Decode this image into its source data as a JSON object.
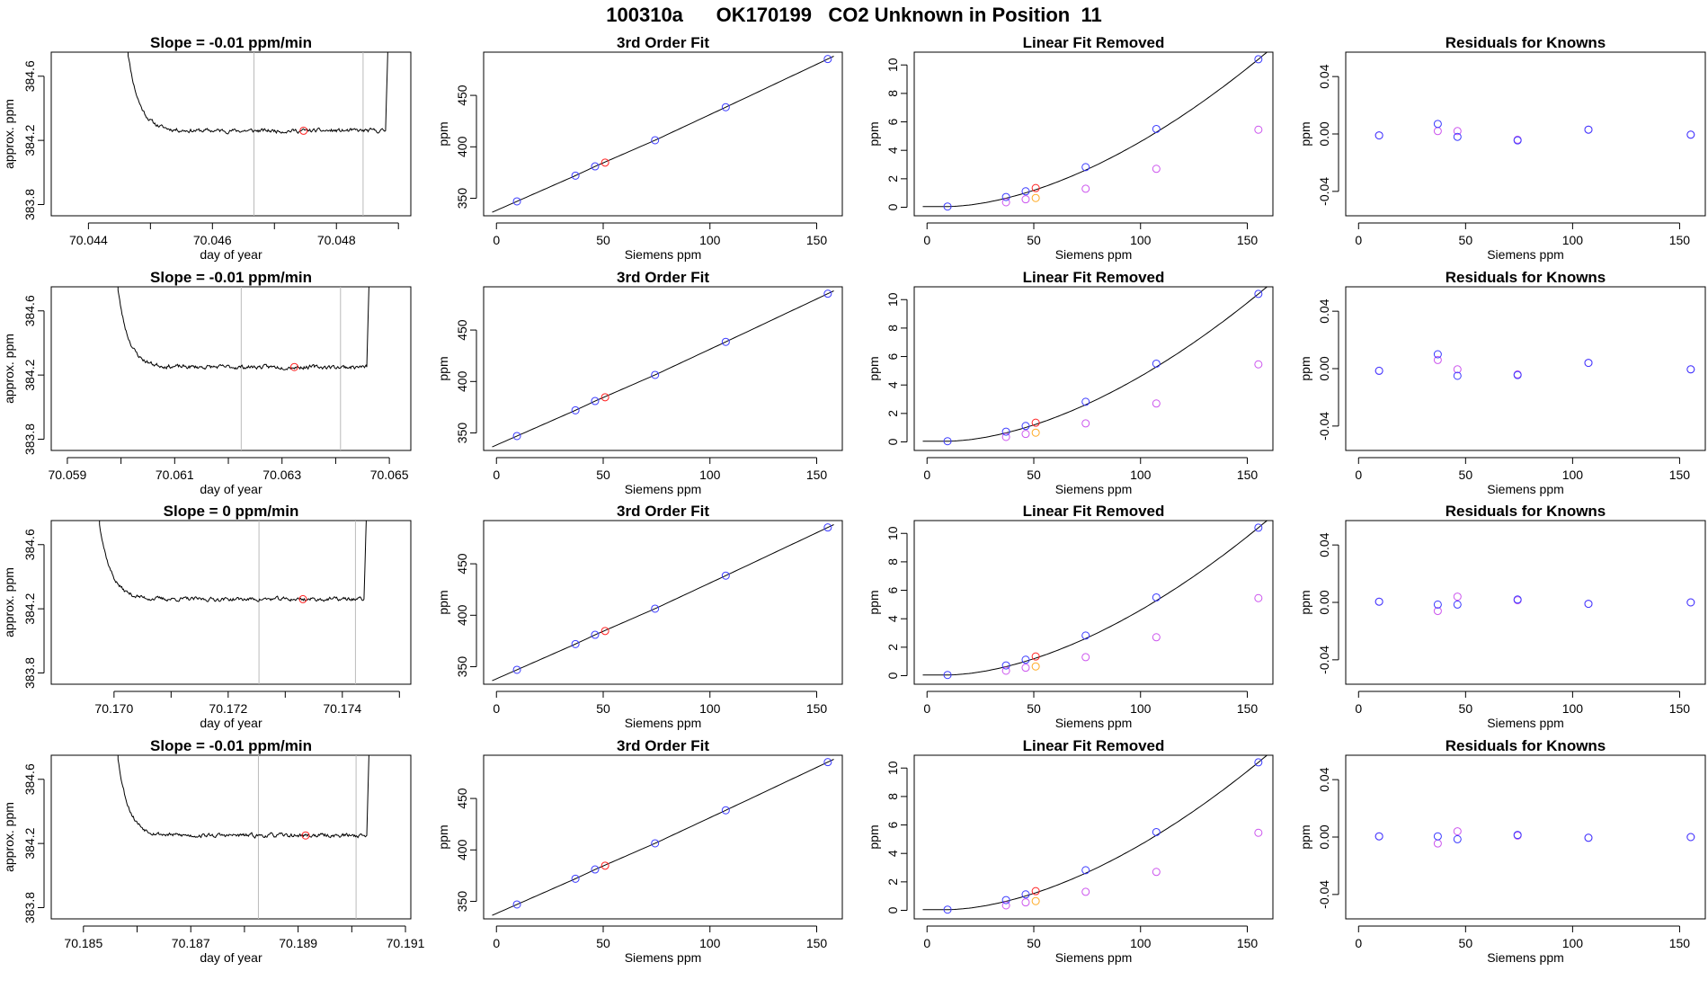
{
  "page": {
    "title": "100310a      OK170199   CO2 Unknown in Position  11"
  },
  "colors": {
    "blue": "#3a3aff",
    "red": "#ff2020",
    "violet": "#cc55ee",
    "orange": "#ffaa22",
    "purple": "#8833ee",
    "line": "#000000",
    "vline": "#bbbbbb"
  },
  "chart_data": [
    {
      "type": "line",
      "title": "Slope =  -0.01  ppm/min",
      "xlabel": "day of year",
      "ylabel": "approx. ppm",
      "xlim": [
        70.0434,
        70.0492
      ],
      "ylim": [
        383.73,
        384.75
      ],
      "xticks": [
        70.044,
        70.045,
        70.046,
        70.047,
        70.048,
        70.049
      ],
      "xticklabels": [
        "70.044",
        "",
        "70.046",
        "",
        "70.048",
        ""
      ],
      "yticks": [
        383.8,
        384.2,
        384.6
      ],
      "yticklabels": [
        "383.8",
        "384.2",
        "384.6"
      ],
      "vlines": [
        70.04667,
        70.04843
      ],
      "trace": {
        "start": 70.0446,
        "end": 70.0489,
        "level": 384.26,
        "rise": 0.6,
        "tau": 0.00018,
        "seed": 11
      },
      "highlight": {
        "x": 70.04747,
        "y": 384.26
      }
    },
    {
      "type": "scatter",
      "title": "3rd Order Fit",
      "xlabel": "Siemens ppm",
      "ylabel": "ppm",
      "xlim": [
        -6,
        162
      ],
      "ylim": [
        333,
        492
      ],
      "xticks": [
        0,
        50,
        100,
        150
      ],
      "yticks": [
        350,
        400,
        450
      ],
      "fit": "curve3",
      "knowns": {
        "x": [
          9.6,
          37.0,
          46.2,
          74.3,
          107.4,
          155.2
        ],
        "y": [
          347.0,
          372.0,
          381.0,
          406.4,
          438.5,
          485.3
        ]
      },
      "unknown": {
        "x": [
          50.9
        ],
        "y": [
          384.7
        ]
      }
    },
    {
      "type": "scatter",
      "title": "Linear Fit Removed",
      "xlabel": "Siemens ppm",
      "ylabel": "ppm",
      "xlim": [
        -6,
        162
      ],
      "ylim": [
        -0.6,
        10.9
      ],
      "xticks": [
        0,
        50,
        100,
        150
      ],
      "yticks": [
        0,
        2,
        4,
        6,
        8,
        10
      ],
      "fit": "resid",
      "knowns": {
        "x": [
          9.6,
          37.0,
          46.2,
          74.3,
          107.4,
          155.2
        ],
        "y": [
          0.05,
          0.72,
          1.12,
          2.82,
          5.5,
          10.4
        ]
      },
      "secondary": {
        "x": [
          37.0,
          46.2,
          74.3,
          107.4,
          155.2
        ],
        "y": [
          0.35,
          0.56,
          1.3,
          2.7,
          5.45
        ]
      },
      "unknown": {
        "x": [
          50.9
        ],
        "y": [
          1.35
        ]
      },
      "unknown2": {
        "x": [
          50.9
        ],
        "y": [
          0.65
        ]
      }
    },
    {
      "type": "scatter",
      "title": "Residuals for Knowns",
      "xlabel": "Siemens ppm",
      "ylabel": "ppm",
      "xlim": [
        -6,
        162
      ],
      "ylim": [
        -0.057,
        0.057
      ],
      "xticks": [
        0,
        50,
        100,
        150
      ],
      "yticks": [
        -0.04,
        0,
        0.04
      ],
      "yticklabels": [
        "-0.04",
        "0.00",
        "0.04"
      ],
      "series": [
        {
          "name": "",
          "x": [
            9.6,
            37.0,
            46.2,
            74.3,
            107.4,
            155.2
          ],
          "y": [
            -0.001,
            0.007,
            -0.002,
            -0.0045,
            0.003,
            -0.0005
          ]
        },
        {
          "name": "",
          "x": [
            9.6,
            37.0,
            46.2,
            74.3,
            107.4,
            155.2
          ],
          "y": [
            -0.001,
            0.002,
            0.002,
            -0.004,
            0.003,
            -0.0005
          ]
        }
      ]
    },
    {
      "type": "line",
      "title": "Slope =  -0.01  ppm/min",
      "xlabel": "day of year",
      "ylabel": "approx. ppm",
      "xlim": [
        70.0587,
        70.0654
      ],
      "ylim": [
        383.73,
        384.75
      ],
      "xticks": [
        70.059,
        70.06,
        70.061,
        70.062,
        70.063,
        70.064,
        70.065
      ],
      "xticklabels": [
        "70.059",
        "",
        "70.061",
        "",
        "70.063",
        "",
        "70.065"
      ],
      "yticks": [
        383.8,
        384.2,
        384.6
      ],
      "yticklabels": [
        "383.8",
        "384.2",
        "384.6"
      ],
      "vlines": [
        70.06224,
        70.06409
      ],
      "trace": {
        "start": 70.0599,
        "end": 70.0647,
        "level": 384.25,
        "rise": 0.6,
        "tau": 0.0002,
        "seed": 23
      },
      "highlight": {
        "x": 70.06323,
        "y": 384.25
      }
    },
    {
      "type": "scatter",
      "title": "3rd Order Fit",
      "xlabel": "Siemens ppm",
      "ylabel": "ppm",
      "xlim": [
        -6,
        162
      ],
      "ylim": [
        333,
        492
      ],
      "xticks": [
        0,
        50,
        100,
        150
      ],
      "yticks": [
        350,
        400,
        450
      ],
      "fit": "curve3",
      "knowns": {
        "x": [
          9.6,
          37.0,
          46.2,
          74.3,
          107.4,
          155.2
        ],
        "y": [
          347.0,
          372.0,
          381.0,
          406.4,
          438.5,
          485.3
        ]
      },
      "unknown": {
        "x": [
          50.9
        ],
        "y": [
          384.7
        ]
      }
    },
    {
      "type": "scatter",
      "title": "Linear Fit Removed",
      "xlabel": "Siemens ppm",
      "ylabel": "ppm",
      "xlim": [
        -6,
        162
      ],
      "ylim": [
        -0.6,
        10.9
      ],
      "xticks": [
        0,
        50,
        100,
        150
      ],
      "yticks": [
        0,
        2,
        4,
        6,
        8,
        10
      ],
      "fit": "resid",
      "knowns": {
        "x": [
          9.6,
          37.0,
          46.2,
          74.3,
          107.4,
          155.2
        ],
        "y": [
          0.05,
          0.72,
          1.12,
          2.82,
          5.5,
          10.4
        ]
      },
      "secondary": {
        "x": [
          37.0,
          46.2,
          74.3,
          107.4,
          155.2
        ],
        "y": [
          0.35,
          0.56,
          1.3,
          2.7,
          5.45
        ]
      },
      "unknown": {
        "x": [
          50.9
        ],
        "y": [
          1.35
        ]
      },
      "unknown2": {
        "x": [
          50.9
        ],
        "y": [
          0.65
        ]
      }
    },
    {
      "type": "scatter",
      "title": "Residuals for Knowns",
      "xlabel": "Siemens ppm",
      "ylabel": "ppm",
      "xlim": [
        -6,
        162
      ],
      "ylim": [
        -0.057,
        0.057
      ],
      "xticks": [
        0,
        50,
        100,
        150
      ],
      "yticks": [
        -0.04,
        0,
        0.04
      ],
      "yticklabels": [
        "-0.04",
        "0.00",
        "0.04"
      ],
      "series": [
        {
          "name": "",
          "x": [
            9.6,
            37.0,
            46.2,
            74.3,
            107.4,
            155.2
          ],
          "y": [
            -0.0015,
            0.01,
            -0.005,
            -0.0045,
            0.004,
            -0.0005
          ]
        },
        {
          "name": "",
          "x": [
            9.6,
            37.0,
            46.2,
            74.3,
            107.4,
            155.2
          ],
          "y": [
            -0.0015,
            0.006,
            -0.0005,
            -0.004,
            0.004,
            -0.0005
          ]
        }
      ]
    },
    {
      "type": "line",
      "title": "Slope =  0  ppm/min",
      "xlabel": "day of year",
      "ylabel": "approx. ppm",
      "xlim": [
        70.1689,
        70.1752
      ],
      "ylim": [
        383.73,
        384.75
      ],
      "xticks": [
        70.17,
        70.171,
        70.172,
        70.173,
        70.174,
        70.175
      ],
      "xticklabels": [
        "70.170",
        "",
        "70.172",
        "",
        "70.174",
        ""
      ],
      "yticks": [
        383.8,
        384.2,
        384.6
      ],
      "yticklabels": [
        "383.8",
        "384.2",
        "384.6"
      ],
      "vlines": [
        70.17254,
        70.17423
      ],
      "trace": {
        "start": 70.1697,
        "end": 70.1745,
        "level": 384.26,
        "rise": 0.6,
        "tau": 0.0002,
        "seed": 37
      },
      "highlight": {
        "x": 70.17331,
        "y": 384.26
      }
    },
    {
      "type": "scatter",
      "title": "3rd Order Fit",
      "xlabel": "Siemens ppm",
      "ylabel": "ppm",
      "xlim": [
        -6,
        162
      ],
      "ylim": [
        333,
        492
      ],
      "xticks": [
        0,
        50,
        100,
        150
      ],
      "yticks": [
        350,
        400,
        450
      ],
      "fit": "curve3",
      "knowns": {
        "x": [
          9.6,
          37.0,
          46.2,
          74.3,
          107.4,
          155.2
        ],
        "y": [
          347.0,
          372.0,
          381.0,
          406.4,
          438.5,
          485.3
        ]
      },
      "unknown": {
        "x": [
          50.9
        ],
        "y": [
          384.7
        ]
      }
    },
    {
      "type": "scatter",
      "title": "Linear Fit Removed",
      "xlabel": "Siemens ppm",
      "ylabel": "ppm",
      "xlim": [
        -6,
        162
      ],
      "ylim": [
        -0.6,
        10.9
      ],
      "xticks": [
        0,
        50,
        100,
        150
      ],
      "yticks": [
        0,
        2,
        4,
        6,
        8,
        10
      ],
      "fit": "resid",
      "knowns": {
        "x": [
          9.6,
          37.0,
          46.2,
          74.3,
          107.4,
          155.2
        ],
        "y": [
          0.05,
          0.72,
          1.12,
          2.82,
          5.5,
          10.4
        ]
      },
      "secondary": {
        "x": [
          37.0,
          46.2,
          74.3,
          107.4,
          155.2
        ],
        "y": [
          0.35,
          0.56,
          1.3,
          2.7,
          5.45
        ]
      },
      "unknown": {
        "x": [
          50.9
        ],
        "y": [
          1.35
        ]
      },
      "unknown2": {
        "x": [
          50.9
        ],
        "y": [
          0.65
        ]
      }
    },
    {
      "type": "scatter",
      "title": "Residuals for Knowns",
      "xlabel": "Siemens ppm",
      "ylabel": "ppm",
      "xlim": [
        -6,
        162
      ],
      "ylim": [
        -0.057,
        0.057
      ],
      "xticks": [
        0,
        50,
        100,
        150
      ],
      "yticks": [
        -0.04,
        0,
        0.04
      ],
      "yticklabels": [
        "-0.04",
        "0.00",
        "0.04"
      ],
      "series": [
        {
          "name": "",
          "x": [
            9.6,
            37.0,
            46.2,
            74.3,
            107.4,
            155.2
          ],
          "y": [
            0.0005,
            -0.0015,
            -0.0015,
            0.002,
            -0.001,
            0.0
          ]
        },
        {
          "name": "",
          "x": [
            9.6,
            37.0,
            46.2,
            74.3,
            107.4,
            155.2
          ],
          "y": [
            0.0005,
            -0.006,
            0.004,
            0.0015,
            -0.001,
            0.0
          ]
        }
      ]
    },
    {
      "type": "line",
      "title": "Slope =  -0.01  ppm/min",
      "xlabel": "day of year",
      "ylabel": "approx. ppm",
      "xlim": [
        70.1844,
        70.1911
      ],
      "ylim": [
        383.73,
        384.75
      ],
      "xticks": [
        70.185,
        70.186,
        70.187,
        70.188,
        70.189,
        70.19,
        70.191
      ],
      "xticklabels": [
        "70.185",
        "",
        "70.187",
        "",
        "70.189",
        "",
        "70.191"
      ],
      "yticks": [
        383.8,
        384.2,
        384.6
      ],
      "yticklabels": [
        "383.8",
        "384.2",
        "384.6"
      ],
      "vlines": [
        70.18826,
        70.19008
      ],
      "trace": {
        "start": 70.1856,
        "end": 70.1904,
        "level": 384.25,
        "rise": 0.6,
        "tau": 0.0002,
        "seed": 53
      },
      "highlight": {
        "x": 70.18914,
        "y": 384.25
      }
    },
    {
      "type": "scatter",
      "title": "3rd Order Fit",
      "xlabel": "Siemens ppm",
      "ylabel": "ppm",
      "xlim": [
        -6,
        162
      ],
      "ylim": [
        333,
        492
      ],
      "xticks": [
        0,
        50,
        100,
        150
      ],
      "yticks": [
        350,
        400,
        450
      ],
      "fit": "curve3",
      "knowns": {
        "x": [
          9.6,
          37.0,
          46.2,
          74.3,
          107.4,
          155.2
        ],
        "y": [
          347.0,
          372.0,
          381.0,
          406.4,
          438.5,
          485.3
        ]
      },
      "unknown": {
        "x": [
          50.9
        ],
        "y": [
          384.7
        ]
      }
    },
    {
      "type": "scatter",
      "title": "Linear Fit Removed",
      "xlabel": "Siemens ppm",
      "ylabel": "ppm",
      "xlim": [
        -6,
        162
      ],
      "ylim": [
        -0.6,
        10.9
      ],
      "xticks": [
        0,
        50,
        100,
        150
      ],
      "yticks": [
        0,
        2,
        4,
        6,
        8,
        10
      ],
      "fit": "resid",
      "knowns": {
        "x": [
          9.6,
          37.0,
          46.2,
          74.3,
          107.4,
          155.2
        ],
        "y": [
          0.05,
          0.72,
          1.12,
          2.82,
          5.5,
          10.4
        ]
      },
      "secondary": {
        "x": [
          37.0,
          46.2,
          74.3,
          107.4,
          155.2
        ],
        "y": [
          0.35,
          0.56,
          1.3,
          2.7,
          5.45
        ]
      },
      "unknown": {
        "x": [
          50.9
        ],
        "y": [
          1.35
        ]
      },
      "unknown2": {
        "x": [
          50.9
        ],
        "y": [
          0.65
        ]
      }
    },
    {
      "type": "scatter",
      "title": "Residuals for Knowns",
      "xlabel": "Siemens ppm",
      "ylabel": "ppm",
      "xlim": [
        -6,
        162
      ],
      "ylim": [
        -0.057,
        0.057
      ],
      "xticks": [
        0,
        50,
        100,
        150
      ],
      "yticks": [
        -0.04,
        0,
        0.04
      ],
      "yticklabels": [
        "-0.04",
        "0.00",
        "0.04"
      ],
      "series": [
        {
          "name": "",
          "x": [
            9.6,
            37.0,
            46.2,
            74.3,
            107.4,
            155.2
          ],
          "y": [
            0.0005,
            0.0005,
            -0.0015,
            0.0015,
            -0.0005,
            0.0
          ]
        },
        {
          "name": "",
          "x": [
            9.6,
            37.0,
            46.2,
            74.3,
            107.4,
            155.2
          ],
          "y": [
            0.0005,
            -0.0045,
            0.004,
            0.001,
            -0.0005,
            0.0
          ]
        }
      ]
    }
  ]
}
